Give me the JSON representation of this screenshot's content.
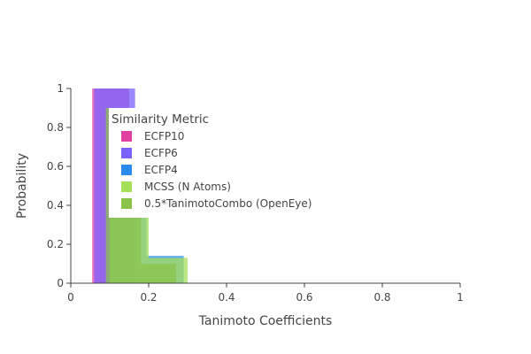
{
  "chart_data": {
    "type": "bar",
    "title": "",
    "xlabel": "Tanimoto Coefficients",
    "ylabel": "Probability",
    "xlim": [
      0,
      1
    ],
    "ylim": [
      0,
      1
    ],
    "x_ticks": [
      "0",
      "0.2",
      "0.4",
      "0.6",
      "0.8",
      "1"
    ],
    "y_ticks": [
      "0",
      "0.2",
      "0.4",
      "0.6",
      "0.8",
      "1"
    ],
    "grid": false,
    "legend_title": "Similarity Metric",
    "legend_position": "top-left",
    "series": [
      {
        "name": "ECFP10",
        "color": "#e040a0",
        "bins": [
          {
            "x0": 0.055,
            "x1": 0.15,
            "value": 1.0
          }
        ]
      },
      {
        "name": "ECFP6",
        "color": "#7b61ff",
        "bins": [
          {
            "x0": 0.06,
            "x1": 0.165,
            "value": 1.0
          }
        ]
      },
      {
        "name": "ECFP4",
        "color": "#2b8cf0",
        "bins": [
          {
            "x0": 0.1,
            "x1": 0.195,
            "value": 0.86
          },
          {
            "x0": 0.195,
            "x1": 0.29,
            "value": 0.14
          }
        ]
      },
      {
        "name": "MCSS (N Atoms)",
        "color": "#a6e05a",
        "bins": [
          {
            "x0": 0.1,
            "x1": 0.2,
            "value": 0.87
          },
          {
            "x0": 0.2,
            "x1": 0.3,
            "value": 0.13
          }
        ]
      },
      {
        "name": "0.5*TanimotoCombo (OpenEye)",
        "color": "#8bc34a",
        "bins": [
          {
            "x0": 0.09,
            "x1": 0.18,
            "value": 0.9
          },
          {
            "x0": 0.18,
            "x1": 0.27,
            "value": 0.1
          }
        ]
      }
    ]
  }
}
